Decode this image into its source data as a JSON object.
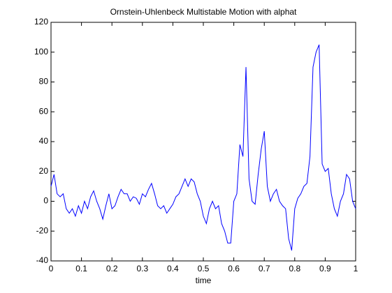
{
  "chart_data": {
    "type": "line",
    "title": "Ornstein-Uhlenbeck Multistable Motion with alphat",
    "x_label": "time",
    "x": [
      0,
      0.01,
      0.02,
      0.03,
      0.04,
      0.05,
      0.06,
      0.07,
      0.08,
      0.09,
      0.1,
      0.11,
      0.12,
      0.13,
      0.14,
      0.15,
      0.16,
      0.17,
      0.18,
      0.19,
      0.2,
      0.21,
      0.22,
      0.23,
      0.24,
      0.25,
      0.26,
      0.27,
      0.28,
      0.29,
      0.3,
      0.31,
      0.32,
      0.33,
      0.34,
      0.35,
      0.36,
      0.37,
      0.38,
      0.39,
      0.4,
      0.41,
      0.42,
      0.43,
      0.44,
      0.45,
      0.46,
      0.47,
      0.48,
      0.49,
      0.5,
      0.51,
      0.52,
      0.53,
      0.54,
      0.55,
      0.56,
      0.57,
      0.58,
      0.59,
      0.6,
      0.61,
      0.62,
      0.63,
      0.64,
      0.65,
      0.66,
      0.67,
      0.68,
      0.69,
      0.7,
      0.71,
      0.72,
      0.73,
      0.74,
      0.75,
      0.76,
      0.77,
      0.78,
      0.79,
      0.8,
      0.81,
      0.82,
      0.83,
      0.84,
      0.85,
      0.86,
      0.87,
      0.88,
      0.89,
      0.9,
      0.91,
      0.92,
      0.93,
      0.94,
      0.95,
      0.96,
      0.97,
      0.98,
      0.99,
      1
    ],
    "series": [
      {
        "color": "#0000ff",
        "values": [
          10,
          18,
          5,
          3,
          5,
          -5,
          -8,
          -5,
          -10,
          -3,
          -8,
          0,
          -5,
          3,
          7,
          0,
          -5,
          -12,
          -3,
          5,
          -5,
          -3,
          3,
          8,
          5,
          5,
          0,
          3,
          2,
          -2,
          5,
          3,
          8,
          12,
          5,
          -3,
          -5,
          -3,
          -8,
          -5,
          -2,
          3,
          5,
          10,
          15,
          10,
          15,
          13,
          5,
          0,
          -10,
          -15,
          -5,
          0,
          -5,
          -3,
          -15,
          -20,
          -28,
          -28,
          0,
          5,
          38,
          30,
          90,
          15,
          0,
          -2,
          18,
          35,
          47,
          10,
          0,
          5,
          8,
          0,
          -3,
          -5,
          -25,
          -33,
          -5,
          2,
          5,
          10,
          12,
          30,
          90,
          100,
          105,
          25,
          20,
          22,
          5,
          -5,
          -10,
          0,
          5,
          18,
          15,
          0,
          -5
        ]
      }
    ],
    "xlim": [
      0,
      1
    ],
    "xticks": [
      0,
      0.1,
      0.2,
      0.3,
      0.4,
      0.5,
      0.6,
      0.7,
      0.8,
      0.9,
      1
    ],
    "ylim": [
      -40,
      120
    ],
    "yticks": [
      -40,
      -20,
      0,
      20,
      40,
      60,
      80,
      100,
      120
    ]
  }
}
